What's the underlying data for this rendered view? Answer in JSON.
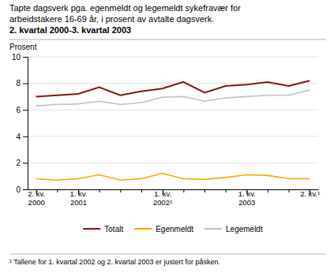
{
  "chart_data": {
    "type": "line",
    "title": "Tapte dagsverk pga. egenmeldt og legemeldt sykefravær for\narbeidstakere 16-69 år, i prosent av avtalte dagsverk.",
    "subtitle": "2. kvartal 2000-3. kvartal 2003",
    "ylabel": "Prosent",
    "annotations": [
      "¹ Tallene for 1. kvartal 2002 og 2. kvartal 2003 er justert for påsken."
    ],
    "categories": [
      "2. kv.\n2000",
      null,
      "1. kv.\n2001",
      null,
      null,
      null,
      "1. kv.\n2002¹",
      null,
      null,
      null,
      "1. kv.\n2003",
      null,
      null,
      "2. kv.¹"
    ],
    "series": [
      {
        "name": "Totalt",
        "color": "#8B1010",
        "values": [
          7.0,
          7.1,
          7.2,
          7.7,
          7.1,
          7.4,
          7.6,
          8.1,
          7.3,
          7.8,
          7.9,
          8.1,
          7.8,
          8.2
        ]
      },
      {
        "name": "Egenmeldt",
        "color": "#FFA500",
        "values": [
          0.8,
          0.7,
          0.8,
          1.1,
          0.7,
          0.8,
          1.2,
          0.8,
          0.75,
          0.9,
          1.1,
          1.05,
          0.8,
          0.8
        ]
      },
      {
        "name": "Legemeldt",
        "color": "#C0C0C0",
        "values": [
          6.3,
          6.4,
          6.45,
          6.65,
          6.4,
          6.55,
          6.95,
          7.0,
          6.65,
          6.9,
          7.0,
          7.1,
          7.1,
          7.5
        ]
      }
    ],
    "ylim": [
      0,
      10
    ],
    "yticks": [
      0,
      2,
      4,
      6,
      8,
      10
    ],
    "grid": true,
    "legend": "bottom"
  }
}
